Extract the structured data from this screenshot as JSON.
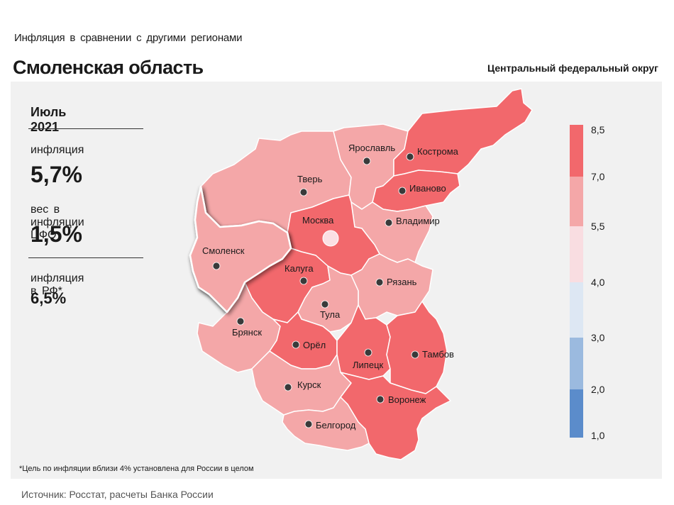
{
  "header": {
    "subtitle": "Инфляция в сравнении с другими регионами",
    "region": "Смоленская область",
    "district": "Центральный федеральный округ"
  },
  "side": {
    "period": "Июль 2021",
    "inflation_label": "инфляция",
    "inflation_value": "5,7%",
    "weight_label": "вес в инфляции ЦФО",
    "weight_value": "1,5%",
    "rf_label": "инфляция в РФ*",
    "rf_value": "6,5%"
  },
  "footnote": "*Цель по инфляции вблизи 4% установлена для России в целом",
  "source": "Источник: Росстат, расчеты Банка России",
  "colors": {
    "dark_red": "#f2686c",
    "light_red": "#f4a7a8",
    "pale_pink": "#f9dde1",
    "pale_blue": "#dde7f3",
    "light_blue": "#9bbadf",
    "blue": "#5b8ccb",
    "highlight": "#f4a7a8"
  },
  "legend": {
    "ticks": [
      "8,5",
      "7,0",
      "5,5",
      "4,0",
      "3,0",
      "2,0",
      "1,0"
    ],
    "bands": [
      {
        "from": 7.0,
        "to": 8.5,
        "color": "#f2686c"
      },
      {
        "from": 5.5,
        "to": 7.0,
        "color": "#f4a7a8"
      },
      {
        "from": 4.0,
        "to": 5.5,
        "color": "#f9dde1"
      },
      {
        "from": 3.0,
        "to": 4.0,
        "color": "#dde7f3"
      },
      {
        "from": 2.0,
        "to": 3.0,
        "color": "#9bbadf"
      },
      {
        "from": 1.0,
        "to": 2.0,
        "color": "#5b8ccb"
      }
    ]
  },
  "regions": [
    {
      "name": "Тверь",
      "band": "light_red"
    },
    {
      "name": "Ярославль",
      "band": "light_red"
    },
    {
      "name": "Кострома",
      "band": "dark_red"
    },
    {
      "name": "Иваново",
      "band": "dark_red"
    },
    {
      "name": "Владимир",
      "band": "light_red"
    },
    {
      "name": "Москва",
      "band": "dark_red"
    },
    {
      "name": "Смоленск",
      "band": "light_red",
      "highlighted": true
    },
    {
      "name": "Калуга",
      "band": "dark_red"
    },
    {
      "name": "Рязань",
      "band": "light_red"
    },
    {
      "name": "Тула",
      "band": "light_red"
    },
    {
      "name": "Брянск",
      "band": "light_red"
    },
    {
      "name": "Орёл",
      "band": "dark_red"
    },
    {
      "name": "Липецк",
      "band": "dark_red"
    },
    {
      "name": "Тамбов",
      "band": "dark_red"
    },
    {
      "name": "Курск",
      "band": "light_red"
    },
    {
      "name": "Воронеж",
      "band": "dark_red"
    },
    {
      "name": "Белгород",
      "band": "light_red"
    }
  ]
}
